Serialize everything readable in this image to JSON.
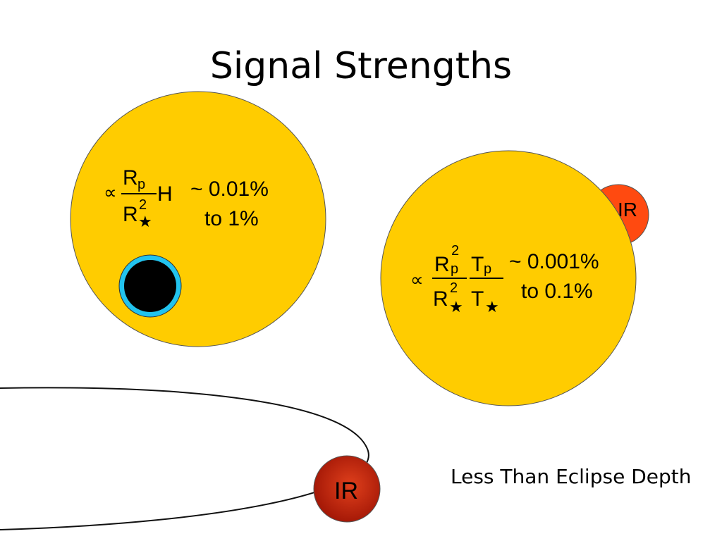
{
  "title": "Signal Strengths",
  "caption": "Less Than Eclipse Depth",
  "transit": {
    "prop_symbol": "∝",
    "numerator": "R",
    "numerator_sub": "p",
    "denominator": "R",
    "denominator_sup": "2",
    "denominator_sub": "★",
    "factor": "H",
    "range_line1": "~ 0.01%",
    "range_line2": "to 1%"
  },
  "eclipse": {
    "prop_symbol": "∝",
    "num1": "R",
    "num1_sup": "2",
    "num1_sub": "p",
    "den1": "R",
    "den1_sup": "2",
    "den1_sub": "★",
    "num2": "T",
    "num2_sub": "p",
    "den2": "T",
    "den2_sub": "★",
    "range_line1": "~ 0.001%",
    "range_line2": "to 0.1%",
    "planet_label": "IR"
  },
  "orbit": {
    "planet_label": "IR"
  },
  "colors": {
    "star": "#FFCC00",
    "transit_planet": "#000000",
    "atmosphere_ring": "#22C3EE",
    "eclipse_planet": "#FF4A10",
    "orbit_planet_dark": "#A01505",
    "orbit_planet_light": "#E0401C"
  }
}
